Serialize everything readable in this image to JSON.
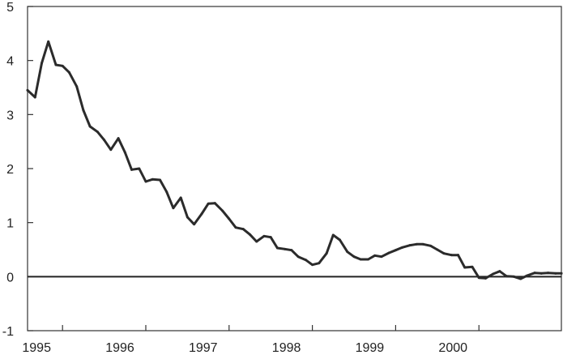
{
  "chart_data": {
    "type": "line",
    "title": "",
    "xlabel": "",
    "ylabel": "",
    "ylim": [
      -1,
      5
    ],
    "xlim": [
      1994.58,
      2000.99
    ],
    "yticks": [
      -1,
      0,
      1,
      2,
      3,
      4,
      5
    ],
    "ytick_labels": [
      "-1",
      "0",
      "1",
      "2",
      "3",
      "4",
      "5"
    ],
    "xticks": [
      1995,
      1996,
      1997,
      1998,
      1999,
      2000
    ],
    "xtick_labels": [
      "1995",
      "1996",
      "1997",
      "1998",
      "1999",
      "2000"
    ],
    "grid": false,
    "legend": "none",
    "reference_line": {
      "y": 0
    },
    "colors": {
      "line": "#2b2b2b",
      "axis": "#333333",
      "background": "#ffffff"
    },
    "series": [
      {
        "x": [
          1994.58,
          1994.67,
          1994.75,
          1994.83,
          1994.92,
          1995.0,
          1995.08,
          1995.17,
          1995.25,
          1995.33,
          1995.42,
          1995.5,
          1995.58,
          1995.67,
          1995.75,
          1995.83,
          1995.92,
          1996.0,
          1996.08,
          1996.17,
          1996.25,
          1996.33,
          1996.42,
          1996.5,
          1996.58,
          1996.67,
          1996.75,
          1996.83,
          1996.92,
          1997.0,
          1997.08,
          1997.17,
          1997.25,
          1997.33,
          1997.42,
          1997.5,
          1997.58,
          1997.67,
          1997.75,
          1997.83,
          1997.92,
          1998.0,
          1998.08,
          1998.17,
          1998.25,
          1998.33,
          1998.42,
          1998.5,
          1998.58,
          1998.67,
          1998.75,
          1998.83,
          1998.92,
          1999.0,
          1999.08,
          1999.17,
          1999.25,
          1999.33,
          1999.42,
          1999.5,
          1999.58,
          1999.67,
          1999.75,
          1999.83,
          1999.92,
          2000.0,
          2000.08,
          2000.17,
          2000.25,
          2000.33,
          2000.42,
          2000.5,
          2000.58,
          2000.67,
          2000.75,
          2000.83,
          2000.92,
          2000.99
        ],
        "values": [
          3.45,
          3.32,
          3.95,
          4.35,
          3.92,
          3.9,
          3.78,
          3.52,
          3.08,
          2.78,
          2.68,
          2.53,
          2.35,
          2.56,
          2.3,
          1.98,
          2.0,
          1.76,
          1.8,
          1.79,
          1.57,
          1.27,
          1.46,
          1.1,
          0.97,
          1.16,
          1.35,
          1.36,
          1.22,
          1.07,
          0.91,
          0.88,
          0.78,
          0.65,
          0.75,
          0.73,
          0.53,
          0.51,
          0.49,
          0.37,
          0.31,
          0.22,
          0.25,
          0.43,
          0.77,
          0.68,
          0.46,
          0.37,
          0.32,
          0.32,
          0.39,
          0.37,
          0.44,
          0.49,
          0.54,
          0.58,
          0.6,
          0.6,
          0.57,
          0.5,
          0.43,
          0.4,
          0.4,
          0.17,
          0.18,
          -0.02,
          -0.03,
          0.05,
          0.1,
          0.01,
          0.0,
          -0.04,
          0.02,
          0.07,
          0.06,
          0.07,
          0.06,
          0.06
        ]
      }
    ]
  }
}
